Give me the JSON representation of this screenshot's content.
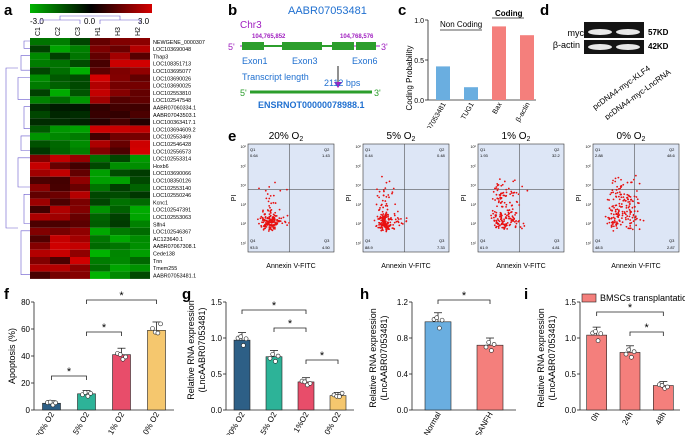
{
  "panels": [
    "a",
    "b",
    "c",
    "d",
    "e",
    "f",
    "g",
    "h",
    "i"
  ],
  "heatmap": {
    "scale_labels": [
      "-3.0",
      "0.0",
      "3.0"
    ],
    "columns": [
      "C1",
      "C2",
      "C3",
      "H1",
      "H3",
      "H2"
    ],
    "rows": [
      "NEWGENE_0000307",
      "LOC103690048",
      "Thap3",
      "LOC108351713",
      "LOC103695077",
      "LOC103690026",
      "LOC103690025",
      "LOC102553810",
      "LOC102547548",
      "AABR07060334.1",
      "AABR07043503.1",
      "LOC100363417.1",
      "LOC103694609.2",
      "LOC102553469",
      "LOC102546428",
      "LOC102556573",
      "LOC102553314",
      "Hoxb6",
      "LOC103690066",
      "LOC108350126",
      "LOC102553140",
      "LOC102550246",
      "Kcnc1",
      "LOC102547391",
      "LOC102553063",
      "Slfn4",
      "LOC102546367",
      "AC123640.1",
      "AABR07067308.1",
      "Cede138",
      "Tnn",
      "Tmem255",
      "AABR07053481.1"
    ],
    "colors": {
      "low": "#00b400",
      "mid": "#000000",
      "high": "#d40000"
    }
  },
  "gene": {
    "chr": "Chr3",
    "id": "AABR07053481",
    "start": "104,765,852",
    "end": "104,768,576",
    "five": "5'",
    "three": "3'",
    "exons": [
      "Exon1",
      "Exon3",
      "Exon6"
    ],
    "transcript_label": "Transcript length",
    "length": "2112 bps",
    "transcript_id": "ENSRNOT00000078988.1"
  },
  "coding": {
    "ylabel": "Coding Probability",
    "yticks": [
      "0.0",
      "0.5",
      "1.0"
    ],
    "noncoding_label": "Non Coding",
    "coding_label": "Coding",
    "chart_data": {
      "type": "bar",
      "categories": [
        "AABR07053481",
        "TUG1",
        "Bax",
        "β-actin"
      ],
      "values": [
        0.42,
        0.16,
        0.92,
        0.81
      ],
      "ylim": [
        0,
        1.0
      ],
      "colors": [
        "#6aaee0",
        "#6aaee0",
        "#f47f7c",
        "#f47f7c"
      ]
    }
  },
  "western": {
    "bands": [
      "myc",
      "β-actin"
    ],
    "sizes": [
      "57KD",
      "42KD"
    ],
    "lanes": [
      "pcDNA4-myc-KLF4",
      "pcDNA4-myc-LncRNA"
    ]
  },
  "flow": {
    "xlabel": "Annexin V-FITC",
    "ylabel": "PI",
    "plots": [
      {
        "title": "20% O",
        "sub": "2",
        "q1": "0.64",
        "q2": "1.43",
        "q3": "4.50",
        "q4": "93.5",
        "density": 0.12
      },
      {
        "title": "5% O",
        "sub": "2",
        "q1": "0.44",
        "q2": "0.48",
        "q3": "7.33",
        "q4": "88.9",
        "density": 0.2
      },
      {
        "title": "1% O",
        "sub": "2",
        "q1": "1.93",
        "q2": "32.2",
        "q3": "4.81",
        "q4": "61.9",
        "density": 0.55
      },
      {
        "title": "0% O",
        "sub": "2",
        "q1": "2.88",
        "q2": "48.6",
        "q3": "2.87",
        "q4": "48.5",
        "density": 0.75
      }
    ],
    "ticks": [
      "10⁶",
      "10⁵",
      "10⁴",
      "10³",
      "10²",
      "10¹"
    ]
  },
  "apoptosis": {
    "ylabel": "Apoptosis (%)",
    "yticks": [
      "0",
      "20",
      "40",
      "60",
      "80"
    ],
    "sig": [
      "*",
      "*",
      "*"
    ],
    "chart_data": {
      "type": "bar",
      "categories": [
        "20% O2",
        "5% O2",
        "1% O2",
        "0% O2"
      ],
      "values": [
        5,
        12,
        41,
        59
      ],
      "ylim": [
        0,
        80
      ],
      "colors": [
        "#2d5f86",
        "#2db398",
        "#e84d6a",
        "#f5c76e"
      ]
    }
  },
  "rna_o2": {
    "ylabel": "Relative RNA expression",
    "ylabel2": "(LncAABR07053481)",
    "yticks": [
      "0.0",
      "0.5",
      "1.0",
      "1.5"
    ],
    "sig": [
      "*",
      "*",
      "*"
    ],
    "chart_data": {
      "type": "bar",
      "categories": [
        "20% O2",
        "5% O2",
        "1%O2",
        "0% O2"
      ],
      "values": [
        0.97,
        0.74,
        0.39,
        0.2
      ],
      "ylim": [
        0,
        1.5
      ],
      "colors": [
        "#2d5f86",
        "#2db398",
        "#e84d6a",
        "#f5c76e"
      ]
    }
  },
  "rna_snfh": {
    "ylabel": "Relative RNA expression",
    "ylabel2": "(LncAABR07053481)",
    "yticks": [
      "0.0",
      "0.4",
      "0.8",
      "1.2"
    ],
    "sig": "*",
    "chart_data": {
      "type": "bar",
      "categories": [
        "Normal",
        "SANFH"
      ],
      "values": [
        0.98,
        0.72
      ],
      "ylim": [
        0,
        1.2
      ],
      "colors": [
        "#6aaee0",
        "#f47f7c"
      ]
    }
  },
  "rna_bmsc": {
    "ylabel": "Relative RNA expression",
    "ylabel2": "(LncAABR07053481)",
    "yticks": [
      "0.0",
      "0.5",
      "1.0",
      "1.5"
    ],
    "legend": "BMSCs transplantation",
    "sig": [
      "*",
      "*"
    ],
    "chart_data": {
      "type": "bar",
      "categories": [
        "0h",
        "24h",
        "48h"
      ],
      "values": [
        1.04,
        0.8,
        0.34
      ],
      "ylim": [
        0,
        1.5
      ],
      "colors": [
        "#f47f7c",
        "#f47f7c",
        "#f47f7c"
      ]
    }
  }
}
